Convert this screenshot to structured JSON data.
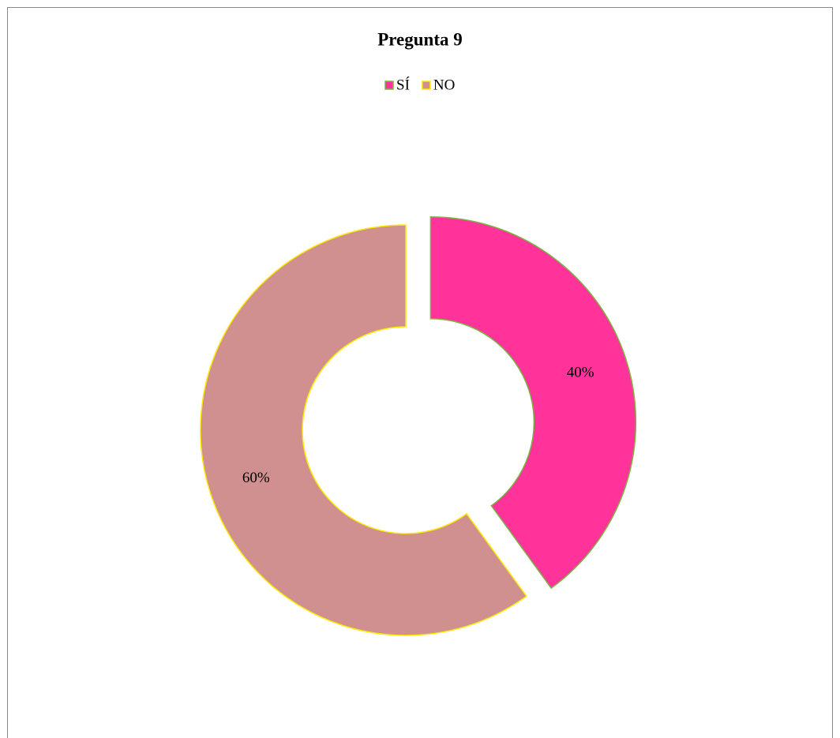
{
  "chart_data": {
    "type": "donut",
    "title": "Pregunta 9",
    "categories": [
      "SÍ",
      "NO"
    ],
    "values": [
      40,
      60
    ],
    "value_labels": [
      "40%",
      "60%"
    ],
    "colors": [
      "#ff3399",
      "#d09090"
    ],
    "edge_colors": [
      "#7cb342",
      "#ffe600"
    ],
    "legend": "top"
  }
}
